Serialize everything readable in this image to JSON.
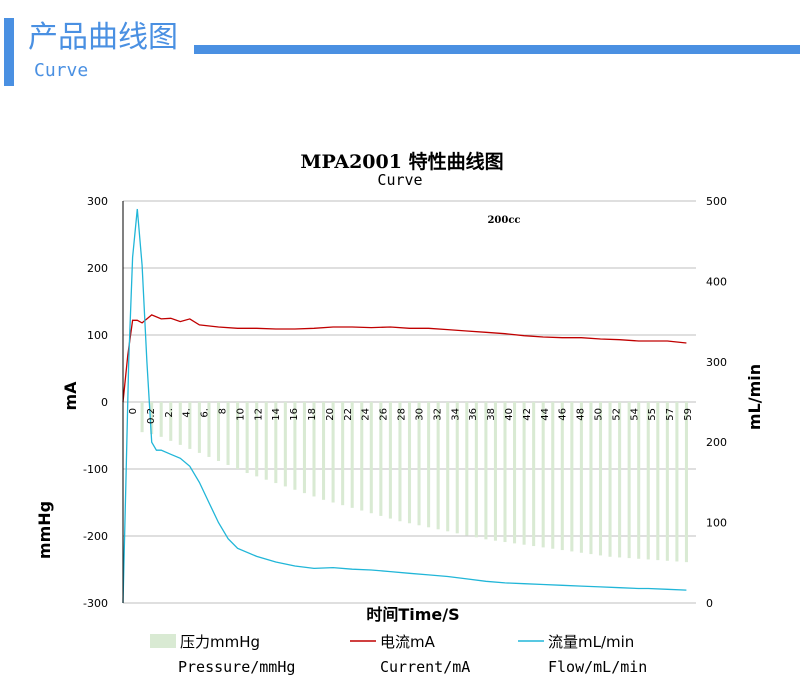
{
  "header": {
    "title": "产品曲线图",
    "subtitle": "Curve",
    "accent_color": "#4a90e2"
  },
  "chart_data": {
    "type": "line",
    "title": "MPA2001 特性曲线图",
    "subtitle": "Curve",
    "annotation": "200cc",
    "xlabel": "时间Time/S",
    "ylabel_left_top": "mA",
    "ylabel_left_bottom": "mmHg",
    "ylabel_right": "mL/min",
    "ylim_left": [
      -300,
      300
    ],
    "ylim_right": [
      0,
      500
    ],
    "left_ticks": [
      "300",
      "200",
      "100",
      "0",
      "-100",
      "-200",
      "-300"
    ],
    "left_tick_values": [
      300,
      200,
      100,
      0,
      -100,
      -200,
      -300
    ],
    "right_ticks": [
      "500",
      "400",
      "300",
      "200",
      "100",
      "0"
    ],
    "right_tick_values": [
      500,
      400,
      300,
      200,
      100,
      0
    ],
    "x_tick_labels": [
      "0",
      "0.2",
      "2.",
      "4.",
      "6.",
      "8",
      "10",
      "12",
      "14",
      "16",
      "18",
      "20",
      "22",
      "24",
      "26",
      "28",
      "30",
      "32",
      "34",
      "36",
      "38",
      "40",
      "42",
      "44",
      "46",
      "48",
      "50",
      "52",
      "54",
      "55",
      "57",
      "59"
    ],
    "x_tick_times": [
      0,
      0.2,
      2,
      4,
      6,
      8,
      10,
      12,
      14,
      16,
      18,
      20,
      22,
      24,
      26,
      28,
      30,
      32,
      34,
      36,
      38,
      40,
      42,
      44,
      46,
      48,
      50,
      52,
      54,
      55,
      57,
      59
    ],
    "x_range": [
      0,
      60
    ],
    "series": [
      {
        "name": "压力mmHg",
        "name_en": "Pressure/mmHg",
        "type": "bar",
        "axis": "left",
        "color": "#d9ead3",
        "x": [
          2,
          3,
          4,
          5,
          6,
          7,
          8,
          9,
          10,
          11,
          12,
          13,
          14,
          15,
          16,
          17,
          18,
          19,
          20,
          21,
          22,
          23,
          24,
          25,
          26,
          27,
          28,
          29,
          30,
          31,
          32,
          33,
          34,
          35,
          36,
          37,
          38,
          39,
          40,
          41,
          42,
          43,
          44,
          45,
          46,
          47,
          48,
          49,
          50,
          51,
          52,
          53,
          54,
          55,
          56,
          57,
          58,
          59
        ],
        "values": [
          -45,
          -48,
          -52,
          -58,
          -64,
          -70,
          -76,
          -82,
          -88,
          -94,
          -100,
          -106,
          -111,
          -116,
          -121,
          -126,
          -131,
          -136,
          -141,
          -146,
          -150,
          -154,
          -158,
          -162,
          -166,
          -170,
          -174,
          -178,
          -181,
          -184,
          -187,
          -190,
          -193,
          -196,
          -199,
          -202,
          -205,
          -207,
          -209,
          -211,
          -213,
          -215,
          -217,
          -219,
          -221,
          -223,
          -225,
          -227,
          -229,
          -231,
          -232,
          -233,
          -234,
          -235,
          -236,
          -237,
          -238,
          -239
        ]
      },
      {
        "name": "电流mA",
        "name_en": "Current/mA",
        "type": "line",
        "axis": "left",
        "color": "#c00000",
        "x": [
          0,
          0.5,
          1,
          1.5,
          2,
          3,
          4,
          5,
          6,
          7,
          8,
          10,
          12,
          14,
          16,
          18,
          20,
          22,
          24,
          26,
          28,
          30,
          32,
          34,
          36,
          38,
          40,
          42,
          44,
          46,
          48,
          50,
          52,
          54,
          55,
          57,
          59
        ],
        "values": [
          0,
          70,
          122,
          122,
          118,
          130,
          124,
          125,
          120,
          124,
          115,
          112,
          110,
          110,
          109,
          109,
          110,
          112,
          112,
          111,
          112,
          110,
          110,
          108,
          106,
          104,
          102,
          99,
          97,
          96,
          96,
          94,
          93,
          91,
          91,
          91,
          88
        ]
      },
      {
        "name": "流量mL/min",
        "name_en": "Flow/mL/min",
        "type": "line",
        "axis": "right",
        "color": "#21b6d8",
        "x": [
          0,
          0.3,
          0.6,
          1,
          1.5,
          2,
          2.5,
          3,
          3.5,
          4,
          5,
          6,
          7,
          8,
          9,
          10,
          11,
          12,
          14,
          16,
          18,
          20,
          22,
          24,
          26,
          28,
          30,
          32,
          34,
          36,
          38,
          40,
          42,
          44,
          46,
          48,
          50,
          52,
          54,
          55,
          57,
          59
        ],
        "values": [
          0,
          150,
          300,
          430,
          490,
          420,
          300,
          200,
          190,
          190,
          185,
          180,
          170,
          150,
          125,
          100,
          80,
          68,
          58,
          51,
          46,
          43,
          44,
          42,
          41,
          39,
          37,
          35,
          33,
          30,
          27,
          25,
          24,
          23,
          22,
          21,
          20,
          19,
          18,
          18,
          17,
          16
        ]
      }
    ]
  }
}
